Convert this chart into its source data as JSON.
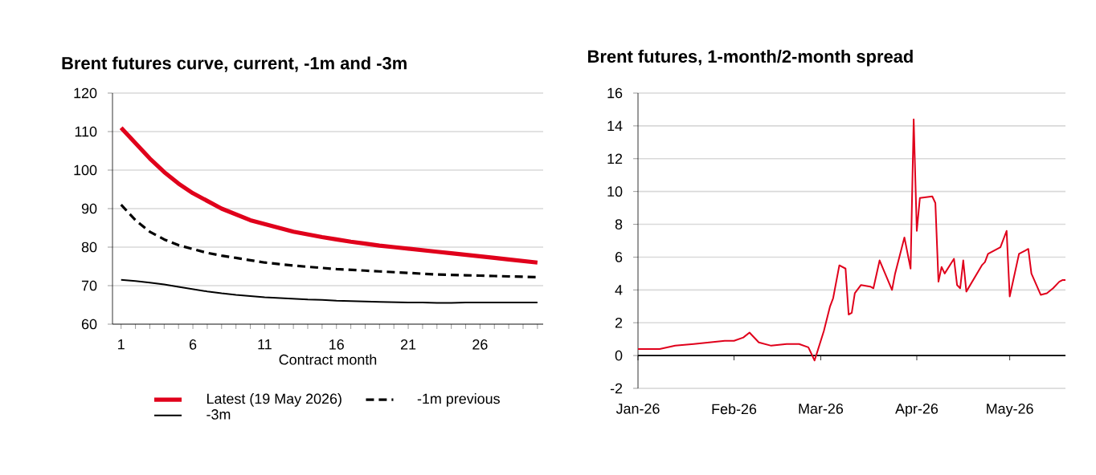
{
  "chart_data": [
    {
      "type": "line",
      "title": "Brent futures curve, current, -1m and -3m",
      "xlabel": "Contract month",
      "x": [
        1,
        2,
        3,
        4,
        5,
        6,
        7,
        8,
        9,
        10,
        11,
        12,
        13,
        14,
        15,
        16,
        17,
        18,
        19,
        20,
        21,
        22,
        23,
        24,
        25,
        26,
        27,
        28,
        29,
        30
      ],
      "series": [
        {
          "name": "Latest (19 May 2026)",
          "color": "#e0001b",
          "line_style": "solid",
          "values": [
            111,
            107,
            103,
            99.5,
            96.5,
            94,
            92,
            90,
            88.5,
            87,
            86,
            85,
            84,
            83.3,
            82.6,
            82,
            81.4,
            80.9,
            80.4,
            80,
            79.6,
            79.2,
            78.8,
            78.4,
            78,
            77.6,
            77.2,
            76.8,
            76.4,
            76
          ]
        },
        {
          "name": "-1m previous",
          "color": "#000000",
          "line_style": "dashed",
          "values": [
            91,
            87,
            84,
            82,
            80.5,
            79.5,
            78.5,
            77.8,
            77.2,
            76.6,
            76,
            75.6,
            75.2,
            74.9,
            74.6,
            74.3,
            74.1,
            73.9,
            73.7,
            73.5,
            73.3,
            73.1,
            72.9,
            72.8,
            72.7,
            72.6,
            72.5,
            72.4,
            72.3,
            72.2
          ]
        },
        {
          "name": "-3m",
          "color": "#000000",
          "line_style": "solid",
          "values": [
            71.5,
            71.2,
            70.8,
            70.3,
            69.7,
            69.1,
            68.5,
            68,
            67.6,
            67.3,
            67,
            66.8,
            66.6,
            66.4,
            66.3,
            66.1,
            66,
            65.9,
            65.8,
            65.7,
            65.6,
            65.6,
            65.5,
            65.5,
            65.6,
            65.6,
            65.6,
            65.6,
            65.6,
            65.6
          ]
        }
      ],
      "xlim": [
        0.4,
        30.4
      ],
      "xticks": [
        1,
        {
          "value": 2,
          "label": null
        },
        {
          "value": 3,
          "label": null
        },
        {
          "value": 4,
          "label": null
        },
        {
          "value": 5,
          "label": null
        },
        6,
        {
          "value": 7,
          "label": null
        },
        {
          "value": 8,
          "label": null
        },
        {
          "value": 9,
          "label": null
        },
        {
          "value": 10,
          "label": null
        },
        11,
        {
          "value": 12,
          "label": null
        },
        {
          "value": 13,
          "label": null
        },
        {
          "value": 14,
          "label": null
        },
        {
          "value": 15,
          "label": null
        },
        16,
        {
          "value": 17,
          "label": null
        },
        {
          "value": 18,
          "label": null
        },
        {
          "value": 19,
          "label": null
        },
        {
          "value": 20,
          "label": null
        },
        21,
        {
          "value": 22,
          "label": null
        },
        {
          "value": 23,
          "label": null
        },
        {
          "value": 24,
          "label": null
        },
        {
          "value": 25,
          "label": null
        },
        26,
        {
          "value": 27,
          "label": null
        },
        {
          "value": 28,
          "label": null
        },
        {
          "value": 29,
          "label": null
        },
        {
          "value": 30,
          "label": null
        }
      ],
      "ylim": [
        60,
        120
      ],
      "yticks": [
        60,
        70,
        80,
        90,
        100,
        110,
        120
      ],
      "grid": "y",
      "legend": "bottom",
      "marker": "none"
    },
    {
      "type": "line",
      "title": "Brent futures, 1-month/2-month spread",
      "series": [
        {
          "color": "#e0001b",
          "x": [
            "2026-01-01",
            "2026-01-08",
            "2026-01-13",
            "2026-01-19",
            "2026-01-24",
            "2026-01-29",
            "2026-02-01",
            "2026-02-04",
            "2026-02-06",
            "2026-02-09",
            "2026-02-13",
            "2026-02-18",
            "2026-02-22",
            "2026-02-25",
            "2026-02-27",
            "2026-03-02",
            "2026-03-04",
            "2026-03-05",
            "2026-03-07",
            "2026-03-09",
            "2026-03-10",
            "2026-03-11",
            "2026-03-12",
            "2026-03-14",
            "2026-03-17",
            "2026-03-18",
            "2026-03-20",
            "2026-03-24",
            "2026-03-25",
            "2026-03-28",
            "2026-03-30",
            "2026-03-31",
            "2026-04-01",
            "2026-04-02",
            "2026-04-06",
            "2026-04-07",
            "2026-04-08",
            "2026-04-09",
            "2026-04-10",
            "2026-04-13",
            "2026-04-14",
            "2026-04-15",
            "2026-04-16",
            "2026-04-17",
            "2026-04-22",
            "2026-04-23",
            "2026-04-24",
            "2026-04-28",
            "2026-04-30",
            "2026-05-01",
            "2026-05-04",
            "2026-05-06",
            "2026-05-07",
            "2026-05-08",
            "2026-05-11",
            "2026-05-13",
            "2026-05-15",
            "2026-05-17",
            "2026-05-18",
            "2026-05-19"
          ],
          "values": [
            0.4,
            0.4,
            0.6,
            0.7,
            0.8,
            0.9,
            0.9,
            1.1,
            1.4,
            0.8,
            0.6,
            0.7,
            0.7,
            0.5,
            -0.3,
            1.5,
            3.0,
            3.5,
            5.5,
            5.3,
            2.5,
            2.6,
            3.8,
            4.3,
            4.2,
            4.1,
            5.8,
            4.0,
            5.0,
            7.2,
            5.3,
            14.4,
            7.6,
            9.6,
            9.7,
            9.3,
            4.5,
            5.4,
            5.0,
            5.9,
            4.3,
            4.1,
            5.8,
            3.9,
            5.5,
            5.7,
            6.2,
            6.6,
            7.6,
            3.6,
            6.2,
            6.4,
            6.5,
            5.0,
            3.7,
            3.8,
            4.1,
            4.5,
            4.6,
            4.6
          ]
        }
      ],
      "xlim": [
        "2026-01-01",
        "2026-05-19"
      ],
      "xticks": [
        {
          "value": "2026-01-01",
          "label": "Jan-26"
        },
        {
          "value": "2026-02-01",
          "label": "Feb-26"
        },
        {
          "value": "2026-03-01",
          "label": "Mar-26"
        },
        {
          "value": "2026-04-01",
          "label": "Apr-26"
        },
        {
          "value": "2026-05-01",
          "label": "May-26"
        }
      ],
      "ylim": [
        -2,
        16
      ],
      "yticks": [
        -2,
        0,
        2,
        4,
        6,
        8,
        10,
        12,
        14,
        16
      ],
      "grid": "y",
      "marker": "none",
      "ref_lines": [
        {
          "axis": "y",
          "value": 0,
          "color": "#000000"
        }
      ]
    }
  ]
}
